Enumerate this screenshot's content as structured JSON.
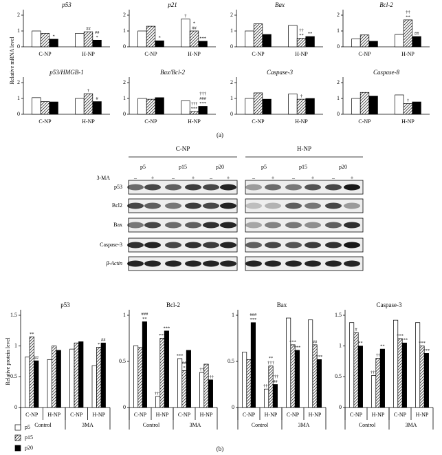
{
  "panel_a": {
    "ylabel": "Relative mRNA level",
    "caption": "(a)"
  },
  "panel_b": {
    "ylabel": "Relative protein level",
    "caption": "(b)"
  },
  "legend": {
    "series": [
      {
        "name": "p5",
        "color": "#ffffff"
      },
      {
        "name": "p15",
        "color": "#ffffff",
        "hatch": true
      },
      {
        "name": "p20",
        "color": "#000000"
      }
    ]
  },
  "blot": {
    "groups": [
      "C-NP",
      "H-NP"
    ],
    "lanes": [
      "p5",
      "p15",
      "p20",
      "p5",
      "p15",
      "p20"
    ],
    "treatment": "3-MA",
    "signs": [
      "–",
      "+",
      "–",
      "+",
      "–",
      "+",
      "–",
      "+",
      "–",
      "+",
      "–",
      "+"
    ],
    "proteins": [
      "p53",
      "Bcl2",
      "Bax",
      "Caspase-3",
      "β-Actin"
    ]
  },
  "chart_data": [
    {
      "type": "bar",
      "title": "p53",
      "categories": [
        "C-NP",
        "H-NP"
      ],
      "ylim": [
        0,
        2
      ],
      "yticks": [
        0,
        1,
        2
      ],
      "series": [
        {
          "values": [
            1.0,
            0.85
          ],
          "annotations": [
            null,
            null
          ]
        },
        {
          "values": [
            0.85,
            0.95
          ],
          "annotations": [
            null,
            [
              "##"
            ]
          ]
        },
        {
          "values": [
            0.48,
            0.42
          ],
          "annotations": [
            [
              "*"
            ],
            [
              "##",
              "*"
            ]
          ]
        }
      ]
    },
    {
      "type": "bar",
      "title": "p21",
      "categories": [
        "C-NP",
        "H-NP"
      ],
      "ylim": [
        0,
        2
      ],
      "yticks": [
        0,
        1,
        2
      ],
      "series": [
        {
          "values": [
            1.0,
            1.75
          ],
          "annotations": [
            null,
            [
              "†"
            ]
          ]
        },
        {
          "values": [
            1.3,
            1.0
          ],
          "annotations": [
            null,
            [
              "*",
              "##"
            ]
          ]
        },
        {
          "values": [
            0.38,
            0.35
          ],
          "annotations": [
            [
              "*"
            ],
            [
              "***"
            ]
          ]
        }
      ]
    },
    {
      "type": "bar",
      "title": "Bax",
      "categories": [
        "C-NP",
        "H-NP"
      ],
      "ylim": [
        0,
        2
      ],
      "yticks": [
        0,
        1,
        2
      ],
      "series": [
        {
          "values": [
            1.0,
            1.35
          ],
          "annotations": [
            null,
            null
          ]
        },
        {
          "values": [
            1.45,
            0.55
          ],
          "annotations": [
            null,
            [
              "††",
              "**"
            ]
          ]
        },
        {
          "values": [
            0.78,
            0.65
          ],
          "annotations": [
            null,
            [
              "**"
            ]
          ]
        }
      ]
    },
    {
      "type": "bar",
      "title": "Bcl-2",
      "categories": [
        "C-NP",
        "H-NP"
      ],
      "ylim": [
        0,
        2
      ],
      "yticks": [
        0,
        1,
        2
      ],
      "series": [
        {
          "values": [
            0.5,
            0.78
          ],
          "annotations": [
            null,
            null
          ]
        },
        {
          "values": [
            0.75,
            1.7
          ],
          "annotations": [
            null,
            [
              "††",
              "**"
            ]
          ]
        },
        {
          "values": [
            0.35,
            0.65
          ],
          "annotations": [
            null,
            [
              "##"
            ]
          ]
        }
      ]
    },
    {
      "type": "bar",
      "title": "p53/HMGB-1",
      "categories": [
        "C-NP",
        "H-NP"
      ],
      "ylim": [
        0,
        2
      ],
      "yticks": [
        0,
        1,
        2
      ],
      "series": [
        {
          "values": [
            1.05,
            1.0
          ],
          "annotations": [
            null,
            null
          ]
        },
        {
          "values": [
            0.8,
            1.3
          ],
          "annotations": [
            null,
            [
              "†"
            ]
          ]
        },
        {
          "values": [
            0.78,
            0.8
          ],
          "annotations": [
            null,
            [
              "#"
            ]
          ]
        }
      ]
    },
    {
      "type": "bar",
      "title": "Bax/Bcl-2",
      "categories": [
        "C-NP",
        "H-NP"
      ],
      "ylim": [
        0,
        2
      ],
      "yticks": [
        0,
        1,
        2
      ],
      "series": [
        {
          "values": [
            1.0,
            0.85
          ],
          "annotations": [
            null,
            null
          ]
        },
        {
          "values": [
            0.95,
            0.18
          ],
          "annotations": [
            null,
            [
              "†††",
              "***"
            ]
          ]
        },
        {
          "values": [
            1.05,
            0.5
          ],
          "annotations": [
            null,
            [
              "†††",
              "###",
              "***"
            ]
          ]
        }
      ]
    },
    {
      "type": "bar",
      "title": "Caspase-3",
      "categories": [
        "C-NP",
        "H-NP"
      ],
      "ylim": [
        0,
        2
      ],
      "yticks": [
        0,
        1,
        2
      ],
      "series": [
        {
          "values": [
            1.0,
            1.28
          ],
          "annotations": [
            null,
            null
          ]
        },
        {
          "values": [
            1.35,
            0.95
          ],
          "annotations": [
            null,
            [
              "†"
            ]
          ]
        },
        {
          "values": [
            0.95,
            1.0
          ],
          "annotations": [
            null,
            null
          ]
        }
      ]
    },
    {
      "type": "bar",
      "title": "Caspase-8",
      "categories": [
        "C-NP",
        "H-NP"
      ],
      "ylim": [
        0,
        2
      ],
      "yticks": [
        0,
        1,
        2
      ],
      "series": [
        {
          "values": [
            1.0,
            1.22
          ],
          "annotations": [
            null,
            null
          ]
        },
        {
          "values": [
            1.38,
            0.68
          ],
          "annotations": [
            null,
            [
              "†"
            ]
          ]
        },
        {
          "values": [
            1.15,
            0.78
          ],
          "annotations": [
            null,
            null
          ]
        }
      ]
    },
    {
      "type": "bar",
      "title": "p53",
      "categories": [
        "C-NP",
        "H-NP",
        "C-NP",
        "H-NP"
      ],
      "groups": [
        "Control",
        "3MA"
      ],
      "ylim": [
        0,
        1.5
      ],
      "yticks": [
        0,
        0.5,
        1,
        1.5
      ],
      "series": [
        {
          "values": [
            0.82,
            0.78,
            0.95,
            0.68
          ],
          "annotations": [
            null,
            null,
            null,
            null
          ]
        },
        {
          "values": [
            1.15,
            1.0,
            1.05,
            0.98
          ],
          "annotations": [
            [
              "**"
            ],
            null,
            null,
            [
              "*"
            ]
          ]
        },
        {
          "values": [
            0.76,
            0.93,
            1.07,
            1.05
          ],
          "annotations": [
            [
              "##"
            ],
            null,
            null,
            [
              "##"
            ]
          ]
        }
      ]
    },
    {
      "type": "bar",
      "title": "Bcl-2",
      "categories": [
        "C-NP",
        "H-NP",
        "C-NP",
        "H-NP"
      ],
      "groups": [
        "Control",
        "3MA"
      ],
      "ylim": [
        0,
        1
      ],
      "yticks": [
        0,
        0.5,
        1
      ],
      "series": [
        {
          "values": [
            0.67,
            0.12,
            0.53,
            0.38
          ],
          "annotations": [
            null,
            [
              "†††"
            ],
            [
              "***"
            ],
            [
              "††"
            ]
          ]
        },
        {
          "values": [
            0.65,
            0.75,
            0.4,
            0.47
          ],
          "annotations": [
            null,
            [
              "***"
            ],
            [
              "##",
              "*"
            ],
            null
          ]
        },
        {
          "values": [
            0.93,
            0.83,
            0.62,
            0.3
          ],
          "annotations": [
            [
              "###",
              "**"
            ],
            [
              "***"
            ],
            null,
            [
              "†††"
            ]
          ]
        }
      ]
    },
    {
      "type": "bar",
      "title": "Bax",
      "categories": [
        "C-NP",
        "H-NP",
        "C-NP",
        "H-NP"
      ],
      "groups": [
        "Control",
        "3MA"
      ],
      "ylim": [
        0,
        1
      ],
      "yticks": [
        0,
        0.5,
        1
      ],
      "series": [
        {
          "values": [
            0.6,
            0.2,
            0.97,
            0.95
          ],
          "annotations": [
            null,
            [
              "†††"
            ],
            null,
            null
          ]
        },
        {
          "values": [
            0.52,
            0.45,
            0.68,
            0.68
          ],
          "annotations": [
            null,
            [
              "**",
              "†††"
            ],
            [
              "***"
            ],
            [
              "##"
            ]
          ]
        },
        {
          "values": [
            0.92,
            0.25,
            0.62,
            0.52
          ],
          "annotations": [
            [
              "###",
              "***"
            ],
            [
              "†††",
              "##"
            ],
            [
              "***"
            ],
            [
              "***"
            ]
          ]
        }
      ]
    },
    {
      "type": "bar",
      "title": "Caspase-3",
      "categories": [
        "C-NP",
        "H-NP",
        "C-NP",
        "H-NP"
      ],
      "groups": [
        "Control",
        "3MA"
      ],
      "ylim": [
        0,
        1.5
      ],
      "yticks": [
        0,
        0.5,
        1,
        1.5
      ],
      "series": [
        {
          "values": [
            1.38,
            0.52,
            1.42,
            1.38
          ],
          "annotations": [
            null,
            [
              "†††"
            ],
            null,
            null
          ]
        },
        {
          "values": [
            1.22,
            0.8,
            1.12,
            1.0
          ],
          "annotations": [
            [
              "#"
            ],
            [
              "††"
            ],
            [
              "***"
            ],
            [
              "***"
            ]
          ]
        },
        {
          "values": [
            1.0,
            0.95,
            1.05,
            0.88
          ],
          "annotations": [
            [
              "**"
            ],
            [
              "**"
            ],
            [
              "***"
            ],
            [
              "***"
            ]
          ]
        }
      ]
    }
  ]
}
